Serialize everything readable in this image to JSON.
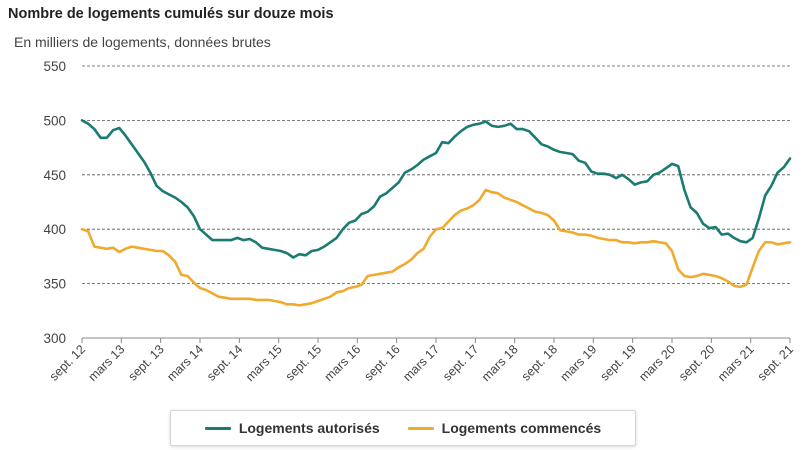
{
  "chart_data": {
    "type": "line",
    "title": "Nombre de logements cumulés sur douze mois",
    "subtitle": "En milliers de logements, données brutes",
    "ylim": [
      300,
      550
    ],
    "yticks": [
      300,
      350,
      400,
      450,
      500,
      550
    ],
    "grid": true,
    "legend_position": "bottom-center",
    "x_tick_labels": [
      "sept. 12",
      "mars 13",
      "sept. 13",
      "mars 14",
      "sept. 14",
      "mars 15",
      "sept. 15",
      "mars 16",
      "sept. 16",
      "mars 17",
      "sept. 17",
      "mars 18",
      "sept. 18",
      "mars 19",
      "sept. 19",
      "mars 20",
      "sept. 20",
      "mars 21",
      "sept. 21"
    ],
    "series": [
      {
        "name": "Logements autorisés",
        "color": "#1b7b72",
        "values": [
          500,
          497,
          492,
          484,
          484,
          491,
          493,
          486,
          478,
          470,
          462,
          452,
          440,
          435,
          432,
          429,
          425,
          420,
          412,
          400,
          395,
          390,
          390,
          390,
          390,
          392,
          390,
          391,
          388,
          383,
          382,
          381,
          380,
          378,
          374,
          377,
          376,
          380,
          381,
          384,
          388,
          392,
          400,
          406,
          408,
          414,
          416,
          421,
          430,
          433,
          438,
          443,
          452,
          455,
          459,
          464,
          467,
          470,
          480,
          479,
          485,
          490,
          494,
          496,
          497,
          499,
          495,
          494,
          495,
          497,
          492,
          492,
          490,
          484,
          478,
          476,
          473,
          471,
          470,
          469,
          463,
          461,
          453,
          451,
          451,
          450,
          447,
          450,
          446,
          441,
          443,
          444,
          450,
          452,
          456,
          460,
          458,
          436,
          420,
          415,
          405,
          401,
          402,
          395,
          396,
          392,
          389,
          388,
          392,
          410,
          431,
          440,
          452,
          457,
          465
        ]
      },
      {
        "name": "Logements commencés",
        "color": "#f0aa2d",
        "values": [
          400,
          398,
          384,
          383,
          382,
          383,
          379,
          382,
          384,
          383,
          382,
          381,
          380,
          380,
          376,
          370,
          358,
          357,
          351,
          346,
          344,
          341,
          338,
          337,
          336,
          336,
          336,
          336,
          335,
          335,
          335,
          334,
          333,
          331,
          331,
          330,
          331,
          332,
          334,
          336,
          338,
          342,
          343,
          346,
          347,
          349,
          357,
          358,
          359,
          360,
          361,
          365,
          368,
          372,
          378,
          382,
          393,
          400,
          401,
          407,
          413,
          417,
          419,
          422,
          427,
          436,
          434,
          433,
          429,
          427,
          425,
          422,
          419,
          416,
          415,
          413,
          408,
          399,
          398,
          397,
          395,
          395,
          394,
          392,
          391,
          390,
          390,
          388,
          388,
          387,
          388,
          388,
          389,
          388,
          387,
          380,
          363,
          357,
          356,
          357,
          359,
          358,
          357,
          355,
          352,
          348,
          347,
          349,
          365,
          380,
          388,
          388,
          386,
          387,
          388
        ]
      }
    ]
  }
}
